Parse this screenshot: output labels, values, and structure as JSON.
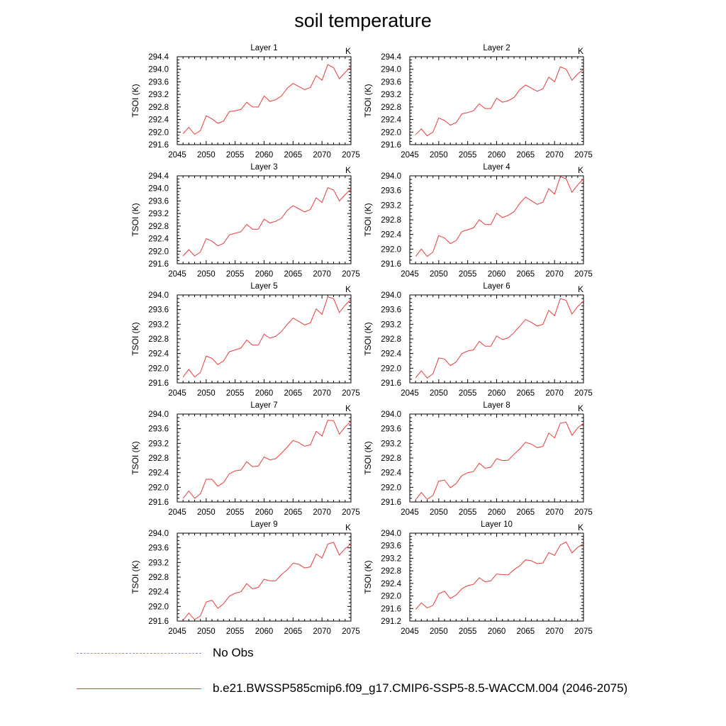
{
  "title": "soil temperature",
  "legend": [
    {
      "label": "No Obs",
      "color": "#8a8aff",
      "style": "dashed"
    },
    {
      "label": "b.e21.BWSSP585cmip6.f09_g17.CMIP6-SSP5-8.5-WACCM.004 (2046-2075)",
      "color": "#e83a3a",
      "style": "solid"
    }
  ],
  "chart_data": [
    {
      "type": "line",
      "title": "Layer 1",
      "units": "K",
      "ylabel": "TSOI  (K)",
      "xlim": [
        2045,
        2075
      ],
      "ylim": [
        291.6,
        294.4
      ],
      "xticks": [
        2045,
        2050,
        2055,
        2060,
        2065,
        2070,
        2075
      ],
      "yticks": [
        "291.6",
        "292.0",
        "292.4",
        "292.8",
        "293.2",
        "293.6",
        "294.0",
        "294.4"
      ],
      "series": [
        {
          "color": "#e83a3a",
          "x": [
            2046,
            2047,
            2048,
            2049,
            2050,
            2051,
            2052,
            2053,
            2054,
            2055,
            2056,
            2057,
            2058,
            2059,
            2060,
            2061,
            2062,
            2063,
            2064,
            2065,
            2066,
            2067,
            2068,
            2069,
            2070,
            2071,
            2072,
            2073,
            2074,
            2075
          ],
          "values": [
            291.95,
            292.15,
            291.93,
            292.05,
            292.52,
            292.42,
            292.28,
            292.35,
            292.65,
            292.68,
            292.72,
            292.95,
            292.8,
            292.8,
            293.15,
            292.98,
            293.03,
            293.15,
            293.4,
            293.55,
            293.45,
            293.35,
            293.42,
            293.8,
            293.65,
            294.15,
            294.05,
            293.7,
            293.9,
            294.08
          ]
        }
      ]
    },
    {
      "type": "line",
      "title": "Layer 2",
      "units": "K",
      "ylabel": "TSOI  (K)",
      "xlim": [
        2045,
        2075
      ],
      "ylim": [
        291.6,
        294.4
      ],
      "xticks": [
        2045,
        2050,
        2055,
        2060,
        2065,
        2070,
        2075
      ],
      "yticks": [
        "291.6",
        "292.0",
        "292.4",
        "292.8",
        "293.2",
        "293.6",
        "294.0",
        "294.4"
      ],
      "series": [
        {
          "color": "#e83a3a",
          "x": [
            2046,
            2047,
            2048,
            2049,
            2050,
            2051,
            2052,
            2053,
            2054,
            2055,
            2056,
            2057,
            2058,
            2059,
            2060,
            2061,
            2062,
            2063,
            2064,
            2065,
            2066,
            2067,
            2068,
            2069,
            2070,
            2071,
            2072,
            2073,
            2074,
            2075
          ],
          "values": [
            291.92,
            292.1,
            291.88,
            292.0,
            292.45,
            292.37,
            292.22,
            292.3,
            292.58,
            292.62,
            292.68,
            292.9,
            292.75,
            292.75,
            293.08,
            292.95,
            293.0,
            293.1,
            293.35,
            293.5,
            293.4,
            293.3,
            293.38,
            293.75,
            293.6,
            294.08,
            294.0,
            293.65,
            293.85,
            294.0
          ]
        }
      ]
    },
    {
      "type": "line",
      "title": "Layer 3",
      "units": "K",
      "ylabel": "TSOI  (K)",
      "xlim": [
        2045,
        2075
      ],
      "ylim": [
        291.6,
        294.4
      ],
      "xticks": [
        2045,
        2050,
        2055,
        2060,
        2065,
        2070,
        2075
      ],
      "yticks": [
        "291.6",
        "292.0",
        "292.4",
        "292.8",
        "293.2",
        "293.6",
        "294.0",
        "294.4"
      ],
      "series": [
        {
          "color": "#e83a3a",
          "x": [
            2046,
            2047,
            2048,
            2049,
            2050,
            2051,
            2052,
            2053,
            2054,
            2055,
            2056,
            2057,
            2058,
            2059,
            2060,
            2061,
            2062,
            2063,
            2064,
            2065,
            2066,
            2067,
            2068,
            2069,
            2070,
            2071,
            2072,
            2073,
            2074,
            2075
          ],
          "values": [
            291.85,
            292.05,
            291.85,
            291.97,
            292.4,
            292.32,
            292.17,
            292.25,
            292.52,
            292.57,
            292.62,
            292.85,
            292.7,
            292.7,
            293.02,
            292.9,
            292.95,
            293.05,
            293.3,
            293.45,
            293.35,
            293.25,
            293.33,
            293.7,
            293.55,
            294.02,
            293.95,
            293.6,
            293.8,
            293.98
          ]
        }
      ]
    },
    {
      "type": "line",
      "title": "Layer 4",
      "units": "K",
      "ylabel": "TSOI  (K)",
      "xlim": [
        2045,
        2075
      ],
      "ylim": [
        291.6,
        294.0
      ],
      "xticks": [
        2045,
        2050,
        2055,
        2060,
        2065,
        2070,
        2075
      ],
      "yticks": [
        "291.6",
        "292.0",
        "292.4",
        "292.8",
        "293.2",
        "293.6",
        "294.0"
      ],
      "series": [
        {
          "color": "#e83a3a",
          "x": [
            2046,
            2047,
            2048,
            2049,
            2050,
            2051,
            2052,
            2053,
            2054,
            2055,
            2056,
            2057,
            2058,
            2059,
            2060,
            2061,
            2062,
            2063,
            2064,
            2065,
            2066,
            2067,
            2068,
            2069,
            2070,
            2071,
            2072,
            2073,
            2074,
            2075
          ],
          "values": [
            291.8,
            292.0,
            291.8,
            291.92,
            292.37,
            292.3,
            292.15,
            292.23,
            292.48,
            292.53,
            292.58,
            292.8,
            292.67,
            292.67,
            292.98,
            292.86,
            292.92,
            293.02,
            293.25,
            293.42,
            293.32,
            293.22,
            293.28,
            293.65,
            293.5,
            293.98,
            293.92,
            293.55,
            293.75,
            293.92
          ]
        }
      ]
    },
    {
      "type": "line",
      "title": "Layer 5",
      "units": "K",
      "ylabel": "TSOI  (K)",
      "xlim": [
        2045,
        2075
      ],
      "ylim": [
        291.6,
        294.0
      ],
      "xticks": [
        2045,
        2050,
        2055,
        2060,
        2065,
        2070,
        2075
      ],
      "yticks": [
        "291.6",
        "292.0",
        "292.4",
        "292.8",
        "293.2",
        "293.6",
        "294.0"
      ],
      "series": [
        {
          "color": "#e83a3a",
          "x": [
            2046,
            2047,
            2048,
            2049,
            2050,
            2051,
            2052,
            2053,
            2054,
            2055,
            2056,
            2057,
            2058,
            2059,
            2060,
            2061,
            2062,
            2063,
            2064,
            2065,
            2066,
            2067,
            2068,
            2069,
            2070,
            2071,
            2072,
            2073,
            2074,
            2075
          ],
          "values": [
            291.76,
            291.97,
            291.76,
            291.88,
            292.33,
            292.27,
            292.1,
            292.2,
            292.45,
            292.5,
            292.55,
            292.77,
            292.63,
            292.63,
            292.93,
            292.82,
            292.87,
            293.0,
            293.2,
            293.37,
            293.28,
            293.18,
            293.24,
            293.62,
            293.47,
            293.95,
            293.9,
            293.52,
            293.72,
            293.88
          ]
        }
      ]
    },
    {
      "type": "line",
      "title": "Layer 6",
      "units": "K",
      "ylabel": "TSOI  (K)",
      "xlim": [
        2045,
        2075
      ],
      "ylim": [
        291.6,
        294.0
      ],
      "xticks": [
        2045,
        2050,
        2055,
        2060,
        2065,
        2070,
        2075
      ],
      "yticks": [
        "291.6",
        "292.0",
        "292.4",
        "292.8",
        "293.2",
        "293.6",
        "294.0"
      ],
      "series": [
        {
          "color": "#e83a3a",
          "x": [
            2046,
            2047,
            2048,
            2049,
            2050,
            2051,
            2052,
            2053,
            2054,
            2055,
            2056,
            2057,
            2058,
            2059,
            2060,
            2061,
            2062,
            2063,
            2064,
            2065,
            2066,
            2067,
            2068,
            2069,
            2070,
            2071,
            2072,
            2073,
            2074,
            2075
          ],
          "values": [
            291.74,
            291.93,
            291.73,
            291.85,
            292.28,
            292.25,
            292.07,
            292.17,
            292.4,
            292.47,
            292.5,
            292.73,
            292.6,
            292.6,
            292.88,
            292.78,
            292.83,
            292.97,
            293.15,
            293.33,
            293.25,
            293.15,
            293.2,
            293.58,
            293.43,
            293.9,
            293.85,
            293.48,
            293.68,
            293.83
          ]
        }
      ]
    },
    {
      "type": "line",
      "title": "Layer 7",
      "units": "K",
      "ylabel": "TSOI  (K)",
      "xlim": [
        2045,
        2075
      ],
      "ylim": [
        291.6,
        294.0
      ],
      "xticks": [
        2045,
        2050,
        2055,
        2060,
        2065,
        2070,
        2075
      ],
      "yticks": [
        "291.6",
        "292.0",
        "292.4",
        "292.8",
        "293.2",
        "293.6",
        "294.0"
      ],
      "series": [
        {
          "color": "#e83a3a",
          "x": [
            2046,
            2047,
            2048,
            2049,
            2050,
            2051,
            2052,
            2053,
            2054,
            2055,
            2056,
            2057,
            2058,
            2059,
            2060,
            2061,
            2062,
            2063,
            2064,
            2065,
            2066,
            2067,
            2068,
            2069,
            2070,
            2071,
            2072,
            2073,
            2074,
            2075
          ],
          "values": [
            291.7,
            291.9,
            291.7,
            291.82,
            292.22,
            292.22,
            292.03,
            292.13,
            292.37,
            292.45,
            292.47,
            292.7,
            292.56,
            292.58,
            292.83,
            292.75,
            292.78,
            292.93,
            293.1,
            293.28,
            293.22,
            293.12,
            293.16,
            293.53,
            293.4,
            293.83,
            293.82,
            293.45,
            293.65,
            293.8
          ]
        }
      ]
    },
    {
      "type": "line",
      "title": "Layer 8",
      "units": "K",
      "ylabel": "TSOI  (K)",
      "xlim": [
        2045,
        2075
      ],
      "ylim": [
        291.6,
        294.0
      ],
      "xticks": [
        2045,
        2050,
        2055,
        2060,
        2065,
        2070,
        2075
      ],
      "yticks": [
        "291.6",
        "292.0",
        "292.4",
        "292.8",
        "293.2",
        "293.6",
        "294.0"
      ],
      "series": [
        {
          "color": "#e83a3a",
          "x": [
            2046,
            2047,
            2048,
            2049,
            2050,
            2051,
            2052,
            2053,
            2054,
            2055,
            2056,
            2057,
            2058,
            2059,
            2060,
            2061,
            2062,
            2063,
            2064,
            2065,
            2066,
            2067,
            2068,
            2069,
            2070,
            2071,
            2072,
            2073,
            2074,
            2075
          ],
          "values": [
            291.66,
            291.86,
            291.67,
            291.78,
            292.17,
            292.2,
            291.99,
            292.1,
            292.32,
            292.4,
            292.43,
            292.66,
            292.52,
            292.55,
            292.78,
            292.73,
            292.74,
            292.9,
            293.05,
            293.23,
            293.18,
            293.08,
            293.12,
            293.48,
            293.35,
            293.75,
            293.78,
            293.42,
            293.62,
            293.75
          ]
        }
      ]
    },
    {
      "type": "line",
      "title": "Layer 9",
      "units": "K",
      "ylabel": "TSOI  (K)",
      "xlim": [
        2045,
        2075
      ],
      "ylim": [
        291.6,
        294.0
      ],
      "xticks": [
        2045,
        2050,
        2055,
        2060,
        2065,
        2070,
        2075
      ],
      "yticks": [
        "291.6",
        "292.0",
        "292.4",
        "292.8",
        "293.2",
        "293.6",
        "294.0"
      ],
      "series": [
        {
          "color": "#e83a3a",
          "x": [
            2046,
            2047,
            2048,
            2049,
            2050,
            2051,
            2052,
            2053,
            2054,
            2055,
            2056,
            2057,
            2058,
            2059,
            2060,
            2061,
            2062,
            2063,
            2064,
            2065,
            2066,
            2067,
            2068,
            2069,
            2070,
            2071,
            2072,
            2073,
            2074,
            2075
          ],
          "values": [
            291.62,
            291.82,
            291.64,
            291.74,
            292.12,
            292.17,
            291.95,
            292.07,
            292.28,
            292.36,
            292.4,
            292.62,
            292.48,
            292.52,
            292.74,
            292.7,
            292.7,
            292.87,
            293.0,
            293.18,
            293.15,
            293.05,
            293.08,
            293.43,
            293.32,
            293.7,
            293.75,
            293.4,
            293.58,
            293.7
          ]
        }
      ]
    },
    {
      "type": "line",
      "title": "Layer 10",
      "units": "K",
      "ylabel": "TSOI  (K)",
      "xlim": [
        2045,
        2075
      ],
      "ylim": [
        291.2,
        294.0
      ],
      "xticks": [
        2045,
        2050,
        2055,
        2060,
        2065,
        2070,
        2075
      ],
      "yticks": [
        "291.2",
        "291.6",
        "292.0",
        "292.4",
        "292.8",
        "293.2",
        "293.6",
        "294.0"
      ],
      "series": [
        {
          "color": "#e83a3a",
          "x": [
            2046,
            2047,
            2048,
            2049,
            2050,
            2051,
            2052,
            2053,
            2054,
            2055,
            2056,
            2057,
            2058,
            2059,
            2060,
            2061,
            2062,
            2063,
            2064,
            2065,
            2066,
            2067,
            2068,
            2069,
            2070,
            2071,
            2072,
            2073,
            2074,
            2075
          ],
          "values": [
            291.57,
            291.78,
            291.62,
            291.7,
            292.07,
            292.15,
            291.92,
            292.03,
            292.23,
            292.33,
            292.37,
            292.58,
            292.45,
            292.48,
            292.7,
            292.68,
            292.67,
            292.84,
            292.96,
            293.15,
            293.12,
            293.03,
            293.05,
            293.38,
            293.29,
            293.62,
            293.72,
            293.37,
            293.55,
            293.66
          ]
        }
      ]
    }
  ]
}
